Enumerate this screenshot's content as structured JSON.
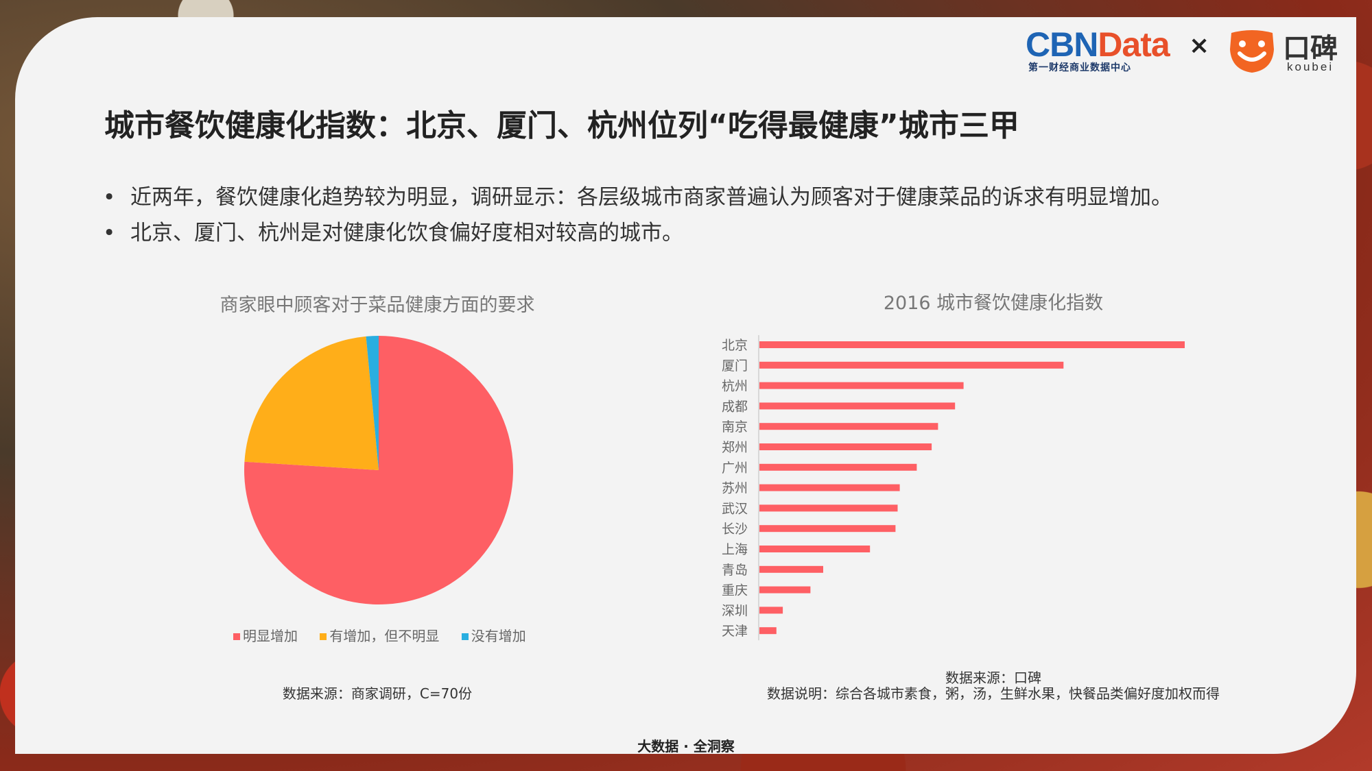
{
  "brand": {
    "cbn_part1": "CBN",
    "cbn_part2": "Data",
    "cbn_subtitle": "第一财经商业数据中心",
    "times": "×",
    "koubei_name": "口碑",
    "koubei_sub": "koubei",
    "cbn_blue": "#1e64b4",
    "cbn_orange": "#e8502a",
    "koubei_orange": "#f26522"
  },
  "title": "城市餐饮健康化指数：北京、厦门、杭州位列“吃得最健康”城市三甲",
  "bullets": [
    "近两年，餐饮健康化趋势较为明显，调研显示：各层级城市商家普遍认为顾客对于健康菜品的诉求有明显增加。",
    "北京、厦门、杭州是对健康化饮食偏好度相对较高的城市。"
  ],
  "bullet_glyph": "•",
  "chart_data": [
    {
      "type": "pie",
      "title": "商家眼中顾客对于菜品健康方面的要求",
      "categories": [
        "明显增加",
        "有增加，但不明显",
        "没有增加"
      ],
      "values": [
        76,
        22.5,
        1.5
      ],
      "colors": [
        "#fe5f64",
        "#ffae19",
        "#29aee0"
      ],
      "legend_position": "bottom",
      "source": "数据来源：商家调研，C=70份"
    },
    {
      "type": "bar",
      "orientation": "horizontal",
      "title": "2016 城市餐饮健康化指数",
      "categories": [
        "北京",
        "厦门",
        "杭州",
        "成都",
        "南京",
        "郑州",
        "广州",
        "苏州",
        "武汉",
        "长沙",
        "上海",
        "青岛",
        "重庆",
        "深圳",
        "天津"
      ],
      "values": [
        100,
        71.5,
        48,
        46,
        42,
        40.5,
        37,
        33,
        32.5,
        32,
        26,
        15,
        12,
        5.5,
        4
      ],
      "color": "#fe5f64",
      "grid": false,
      "source": "数据来源：口碑",
      "note": "数据说明：综合各城市素食，粥，汤，生鲜水果，快餐品类偏好度加权而得"
    }
  ],
  "footer": "大数据 · 全洞察"
}
